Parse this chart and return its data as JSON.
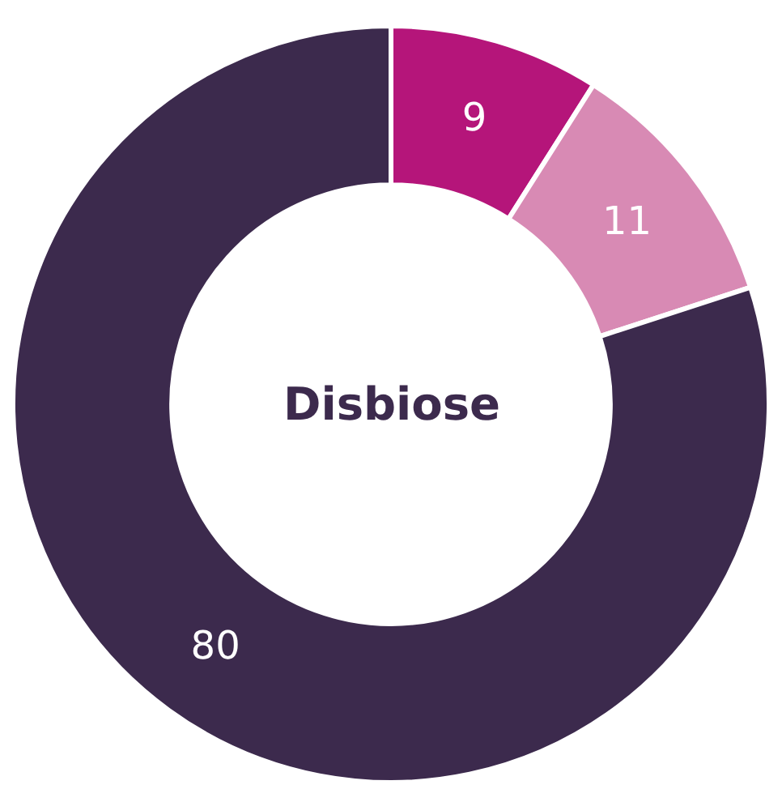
{
  "chart_data": {
    "type": "donut",
    "title": "Disbiose",
    "categories": [
      null,
      null,
      null
    ],
    "values": [
      9,
      11,
      80
    ],
    "colors": [
      "#b5157a",
      "#d88ab4",
      "#3c2a4d"
    ],
    "data_labels": true,
    "legend": false
  }
}
